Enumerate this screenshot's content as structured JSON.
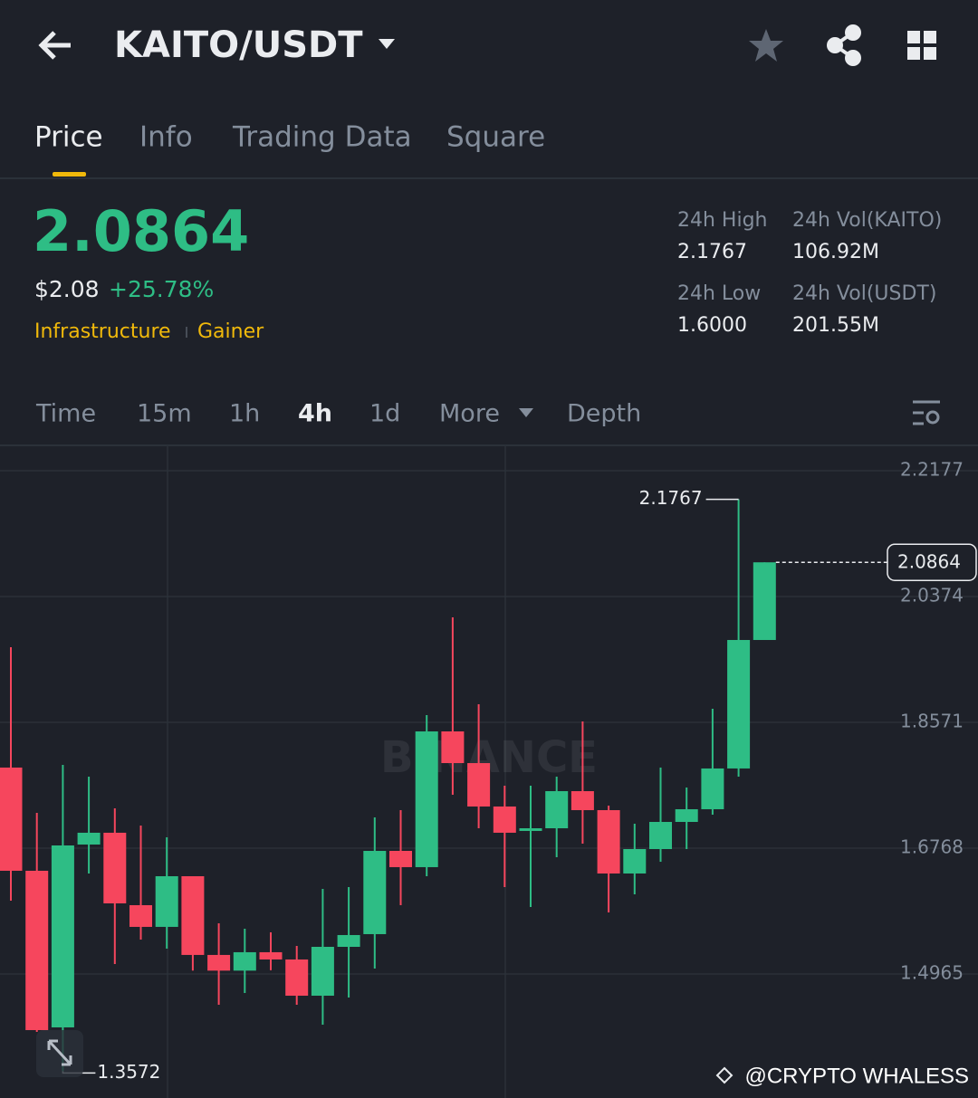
{
  "header": {
    "title": "KAITO/USDT"
  },
  "tabs": [
    "Price",
    "Info",
    "Trading Data",
    "Square"
  ],
  "price": {
    "last": "2.0864",
    "usd": "$2.08",
    "change": "+25.78%",
    "tags": [
      "Infrastructure",
      "Gainer"
    ]
  },
  "stats": [
    {
      "label": "24h High",
      "value": "2.1767"
    },
    {
      "label": "24h Vol(KAITO)",
      "value": "106.92M"
    },
    {
      "label": "24h Low",
      "value": "1.6000"
    },
    {
      "label": "24h Vol(USDT)",
      "value": "201.55M"
    }
  ],
  "intervals": [
    "Time",
    "15m",
    "1h",
    "4h",
    "1d",
    "More",
    "Depth"
  ],
  "watermark": "BINANCE",
  "credit": "@CRYPTO WHALESS",
  "chart_data": {
    "type": "candlestick",
    "up_color": "#2ebd85",
    "down_color": "#f6465d",
    "ylim": [
      1.3188,
      2.254
    ],
    "yticks": [
      2.2177,
      2.0374,
      1.8571,
      1.6768,
      1.4965
    ],
    "grid": true,
    "open": [
      1.7923,
      1.6444,
      1.42,
      1.682,
      1.6989,
      1.5951,
      1.564,
      1.6366,
      1.5238,
      1.5013,
      1.5277,
      1.5173,
      1.4654,
      1.5354,
      1.5536,
      1.6729,
      1.6496,
      1.8441,
      1.7987,
      1.7365,
      1.7015,
      1.7053,
      1.7585,
      1.7313,
      1.6405,
      1.6755,
      1.7144,
      1.7326,
      1.791,
      1.9751
    ],
    "high": [
      1.9648,
      1.7274,
      1.7961,
      1.7793,
      1.7339,
      1.7092,
      1.6924,
      1.6366,
      1.5692,
      1.5614,
      1.5562,
      1.5367,
      1.6184,
      1.621,
      1.7209,
      1.7313,
      1.8675,
      2.0076,
      1.883,
      1.7663,
      1.7663,
      1.7793,
      1.8584,
      1.7378,
      1.7118,
      1.7923,
      1.7637,
      1.8766,
      2.1767,
      2.0864
    ],
    "low": [
      1.6016,
      1.4135,
      1.3572,
      1.6405,
      1.5108,
      1.5458,
      1.5328,
      1.5013,
      1.4524,
      1.4693,
      1.5019,
      1.4524,
      1.4239,
      1.4628,
      1.5043,
      1.5951,
      1.6366,
      1.7533,
      1.7053,
      1.621,
      1.5925,
      1.6638,
      1.6833,
      1.5847,
      1.6107,
      1.6573,
      1.6755,
      1.7248,
      1.7793,
      1.9751
    ],
    "close": [
      1.6444,
      1.4161,
      1.6807,
      1.6989,
      1.5977,
      1.564,
      1.6366,
      1.5238,
      1.5013,
      1.5277,
      1.5173,
      1.4654,
      1.5354,
      1.5523,
      1.6729,
      1.6496,
      1.8441,
      1.7987,
      1.7365,
      1.6989,
      1.7053,
      1.7585,
      1.7313,
      1.6405,
      1.6755,
      1.7144,
      1.7326,
      1.791,
      1.9751,
      2.0864
    ]
  }
}
